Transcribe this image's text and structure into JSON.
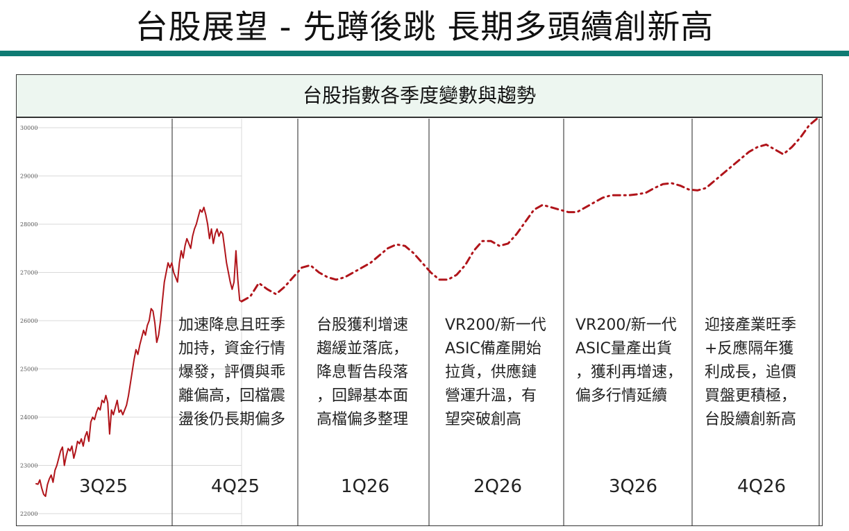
{
  "slide": {
    "title": "台股展望 - 先蹲後跳 長期多頭續創新高"
  },
  "panel": {
    "header": "台股指數各季度變數與趨勢"
  },
  "quarters": [
    {
      "label": "3Q25",
      "note": ""
    },
    {
      "label": "4Q25",
      "note": "加速降息且旺季\n加持，資金行情\n爆發，評價與乖\n離偏高，回檔震\n盪後仍長期偏多"
    },
    {
      "label": "1Q26",
      "note": "台股獲利增速\n趨緩並落底，\n降息暫告段落\n，回歸基本面\n高檔偏多整理"
    },
    {
      "label": "2Q26",
      "note": "VR200/新一代\nASIC備產開始\n拉貨，供應鏈\n營運升溫，有\n望突破創高"
    },
    {
      "label": "3Q26",
      "note": "VR200/新一代\nASIC量產出貨\n，獲利再增速，\n偏多行情延續"
    },
    {
      "label": "4Q26",
      "note": "迎接產業旺季\n+反應隔年獲\n利成長，追價\n買盤更積極，\n台股續創新高"
    }
  ],
  "chart_data": {
    "type": "line",
    "ylim": [
      22000,
      30000
    ],
    "yticks": [
      "22000",
      "23000",
      "24000",
      "25000",
      "26000",
      "27000",
      "28000",
      "29000",
      "30000"
    ],
    "grid": true,
    "series": [
      {
        "style": "actual",
        "color": "#b0141a",
        "values": [
          22620,
          22610,
          22700,
          22530,
          22400,
          22360,
          22600,
          22720,
          22800,
          22650,
          22900,
          23000,
          23150,
          23300,
          23380,
          23000,
          23200,
          23350,
          23300,
          23400,
          23150,
          23300,
          23500,
          23450,
          23550,
          23400,
          23600,
          23700,
          23500,
          23900,
          24000,
          23950,
          24100,
          24200,
          24150,
          24350,
          24300,
          24450,
          24300,
          23650,
          24150,
          24050,
          24200,
          24350,
          24100,
          24150,
          24050,
          24150,
          24250,
          24450,
          24700,
          24950,
          25200,
          25400,
          25300,
          25500,
          25650,
          25800,
          25700,
          25900,
          26000,
          26250,
          26200,
          25950,
          25550,
          25700,
          26000,
          26400,
          26800,
          27000,
          27200,
          27100,
          27200,
          27000,
          26900,
          26800,
          27200,
          27450,
          27300,
          27550,
          27700,
          27600,
          27500,
          27750,
          27900,
          28000,
          28150,
          28300,
          28250,
          28350,
          28200,
          28000,
          27700,
          27900,
          27600,
          27800,
          27900,
          27750,
          27850,
          27800,
          27500,
          27200,
          27000,
          26800,
          26650,
          26800,
          27450,
          26850,
          26420,
          26400
        ]
      },
      {
        "style": "forecast",
        "color": "#b0141a",
        "values": [
          26400,
          26500,
          26780,
          26650,
          26550,
          26700,
          26900,
          27100,
          27150,
          27000,
          26900,
          26850,
          26900,
          27000,
          27100,
          27200,
          27350,
          27500,
          27580,
          27550,
          27400,
          27200,
          27000,
          26850,
          26850,
          26950,
          27150,
          27450,
          27650,
          27650,
          27550,
          27600,
          27800,
          28050,
          28300,
          28400,
          28350,
          28300,
          28250,
          28250,
          28350,
          28450,
          28550,
          28600,
          28600,
          28600,
          28620,
          28650,
          28750,
          28830,
          28850,
          28800,
          28720,
          28700,
          28750,
          28900,
          29050,
          29200,
          29350,
          29500,
          29600,
          29650,
          29550,
          29450,
          29600,
          29800,
          30050,
          30200
        ]
      }
    ]
  }
}
